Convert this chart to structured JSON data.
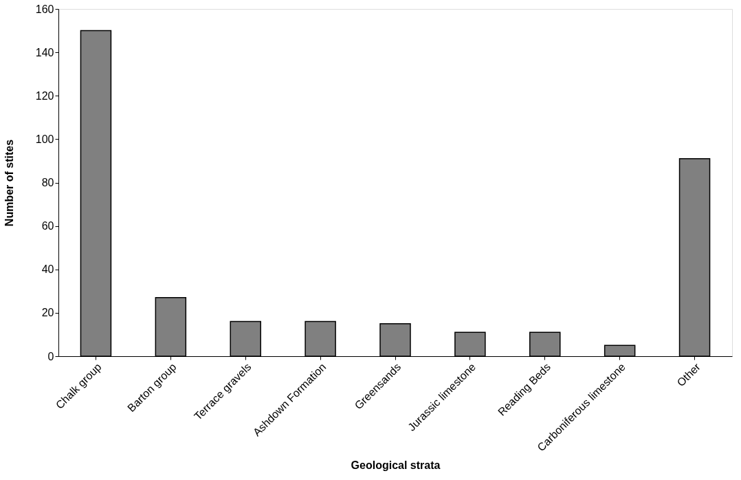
{
  "chart_data": {
    "type": "bar",
    "xlabel": "Geological strata",
    "ylabel": "Number of stites",
    "categories": [
      "Chalk group",
      "Barton group",
      "Terrace gravels",
      "Ashdown Formation",
      "Greensands",
      "Jurassic limestone",
      "Reading Beds",
      "Carboniferous limestone",
      "Other"
    ],
    "values": [
      150,
      27,
      16,
      16,
      15,
      11,
      11,
      5,
      91
    ],
    "color": "#808080",
    "ylim": [
      0,
      160
    ],
    "yticks": [
      0,
      20,
      40,
      60,
      80,
      100,
      120,
      140,
      160
    ],
    "grid": false
  }
}
